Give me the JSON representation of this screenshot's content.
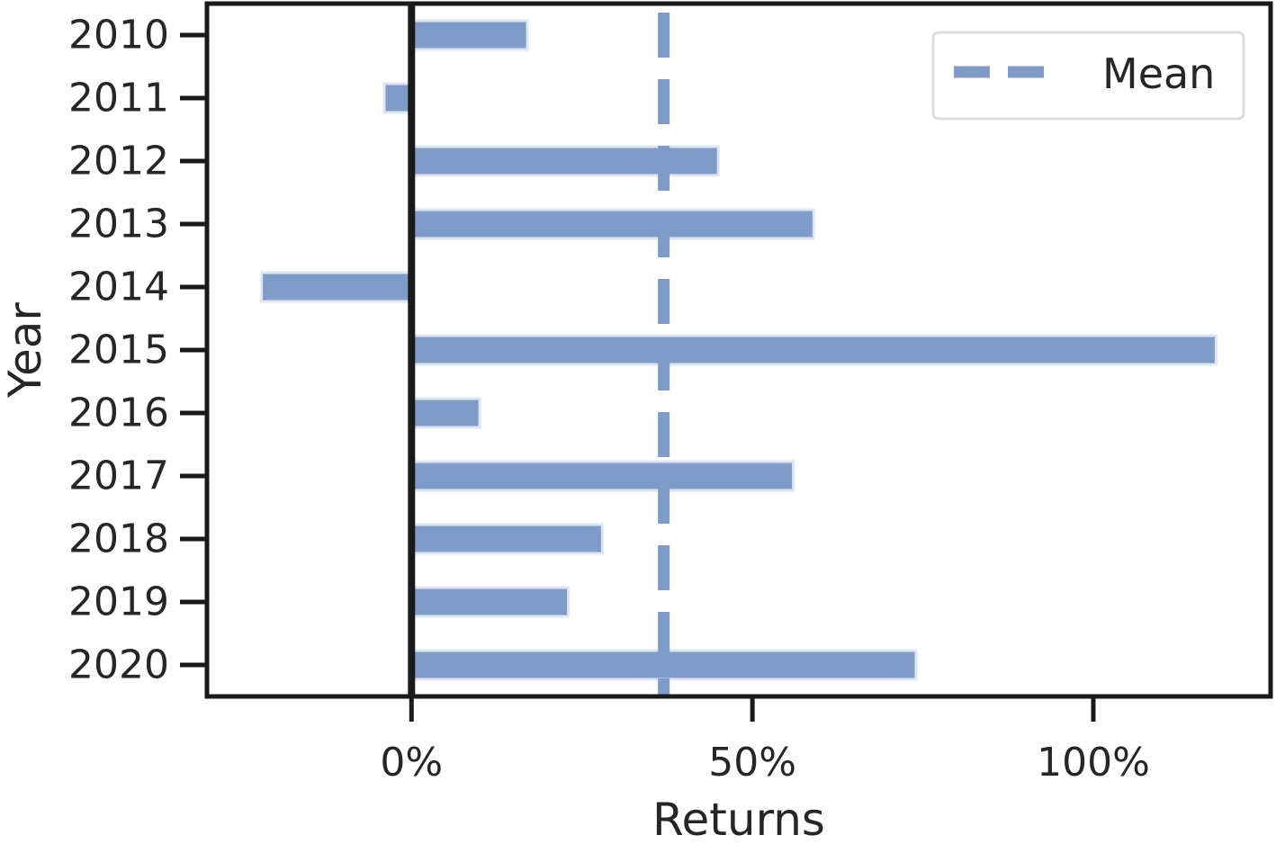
{
  "chart_data": {
    "type": "bar",
    "orientation": "horizontal",
    "categories": [
      "2010",
      "2011",
      "2012",
      "2013",
      "2014",
      "2015",
      "2016",
      "2017",
      "2018",
      "2019",
      "2020"
    ],
    "values": [
      17,
      -4,
      45,
      59,
      -22,
      118,
      10,
      56,
      28,
      23,
      74
    ],
    "value_unit": "%",
    "mean": 37,
    "xlabel": "Returns",
    "ylabel": "Year",
    "xlim": [
      -30,
      126
    ],
    "xticks": [
      0,
      50,
      100
    ],
    "xtick_labels": [
      "0%",
      "50%",
      "100%"
    ],
    "zero_line": true,
    "grid": false,
    "legend": {
      "position": "top-right",
      "entries": [
        "Mean"
      ]
    },
    "colors": {
      "bar": "#7f9cc9",
      "mean_line": "#7f9cc9",
      "axis": "#1a1a1a",
      "zero_line": "#1a1a1a"
    }
  }
}
